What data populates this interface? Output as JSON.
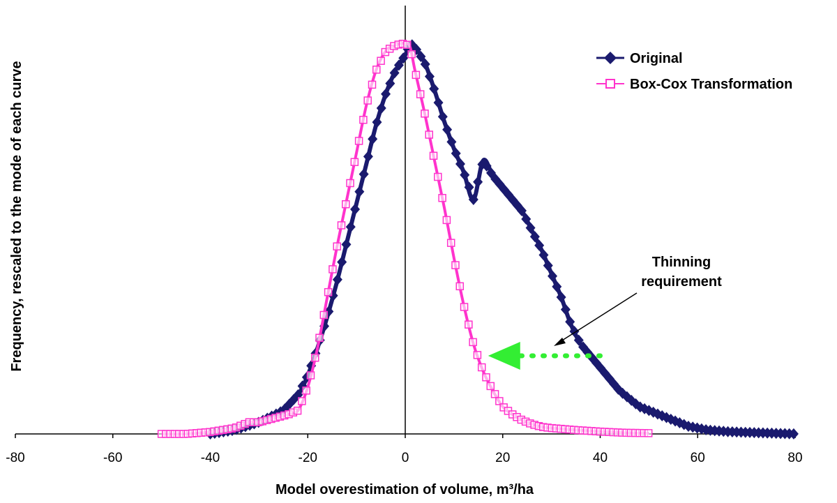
{
  "chart_data": {
    "type": "line",
    "xlabel": "Model overestimation of volume, m³/ha",
    "ylabel": "Frequency, rescaled to the mode of each curve",
    "xlim": [
      -80,
      80
    ],
    "ylim": [
      0,
      1
    ],
    "x_ticks": [
      -80,
      -60,
      -40,
      -20,
      0,
      20,
      40,
      60,
      80
    ],
    "grid": false,
    "legend_position": "top-right",
    "series": [
      {
        "name": "Original",
        "color": "#1a1a6e",
        "marker": "filled-diamond",
        "x": [
          -40,
          -35,
          -30,
          -25,
          -22,
          -20,
          -18,
          -16,
          -14,
          -12,
          -10,
          -8,
          -6,
          -4,
          -2,
          0,
          1,
          2,
          4,
          6,
          8,
          10,
          12,
          14,
          16,
          18,
          20,
          22,
          24,
          26,
          28,
          30,
          32,
          34,
          36,
          38,
          40,
          42,
          44,
          46,
          48,
          50,
          52,
          54,
          56,
          58,
          60,
          62,
          64,
          66,
          70,
          75,
          80
        ],
        "y": [
          0,
          0.01,
          0.03,
          0.06,
          0.1,
          0.15,
          0.22,
          0.3,
          0.39,
          0.49,
          0.59,
          0.69,
          0.79,
          0.87,
          0.93,
          0.97,
          1.0,
          0.99,
          0.95,
          0.88,
          0.8,
          0.73,
          0.67,
          0.6,
          0.7,
          0.66,
          0.63,
          0.6,
          0.57,
          0.52,
          0.47,
          0.41,
          0.35,
          0.28,
          0.23,
          0.2,
          0.17,
          0.14,
          0.11,
          0.09,
          0.07,
          0.06,
          0.05,
          0.04,
          0.03,
          0.02,
          0.015,
          0.01,
          0.008,
          0.006,
          0.004,
          0.002,
          0.0
        ],
        "note": ""
      },
      {
        "name": "Box-Cox Transformation",
        "color": "#ff33cc",
        "marker": "open-square",
        "x": [
          -50,
          -45,
          -40,
          -35,
          -32,
          -30,
          -27,
          -24,
          -22,
          -20,
          -18,
          -16,
          -14,
          -12,
          -10,
          -8,
          -6,
          -4,
          -2,
          0,
          1,
          2,
          4,
          6,
          8,
          10,
          12,
          14,
          16,
          18,
          20,
          22,
          24,
          26,
          28,
          30,
          35,
          40,
          45,
          50
        ],
        "y": [
          0,
          0,
          0.005,
          0.015,
          0.03,
          0.03,
          0.04,
          0.05,
          0.06,
          0.12,
          0.22,
          0.35,
          0.48,
          0.6,
          0.72,
          0.84,
          0.93,
          0.98,
          0.995,
          1.0,
          0.99,
          0.93,
          0.82,
          0.7,
          0.58,
          0.45,
          0.33,
          0.23,
          0.16,
          0.11,
          0.07,
          0.05,
          0.035,
          0.025,
          0.018,
          0.015,
          0.01,
          0.006,
          0.003,
          0.002
        ]
      }
    ],
    "annotations": {
      "thinning_label_line1": "Thinning",
      "thinning_label_line2": "requirement",
      "arrow_from_x": 40,
      "arrow_to_x": 17,
      "arrow_y": 0.2,
      "arrow_color": "#33ee33"
    }
  }
}
